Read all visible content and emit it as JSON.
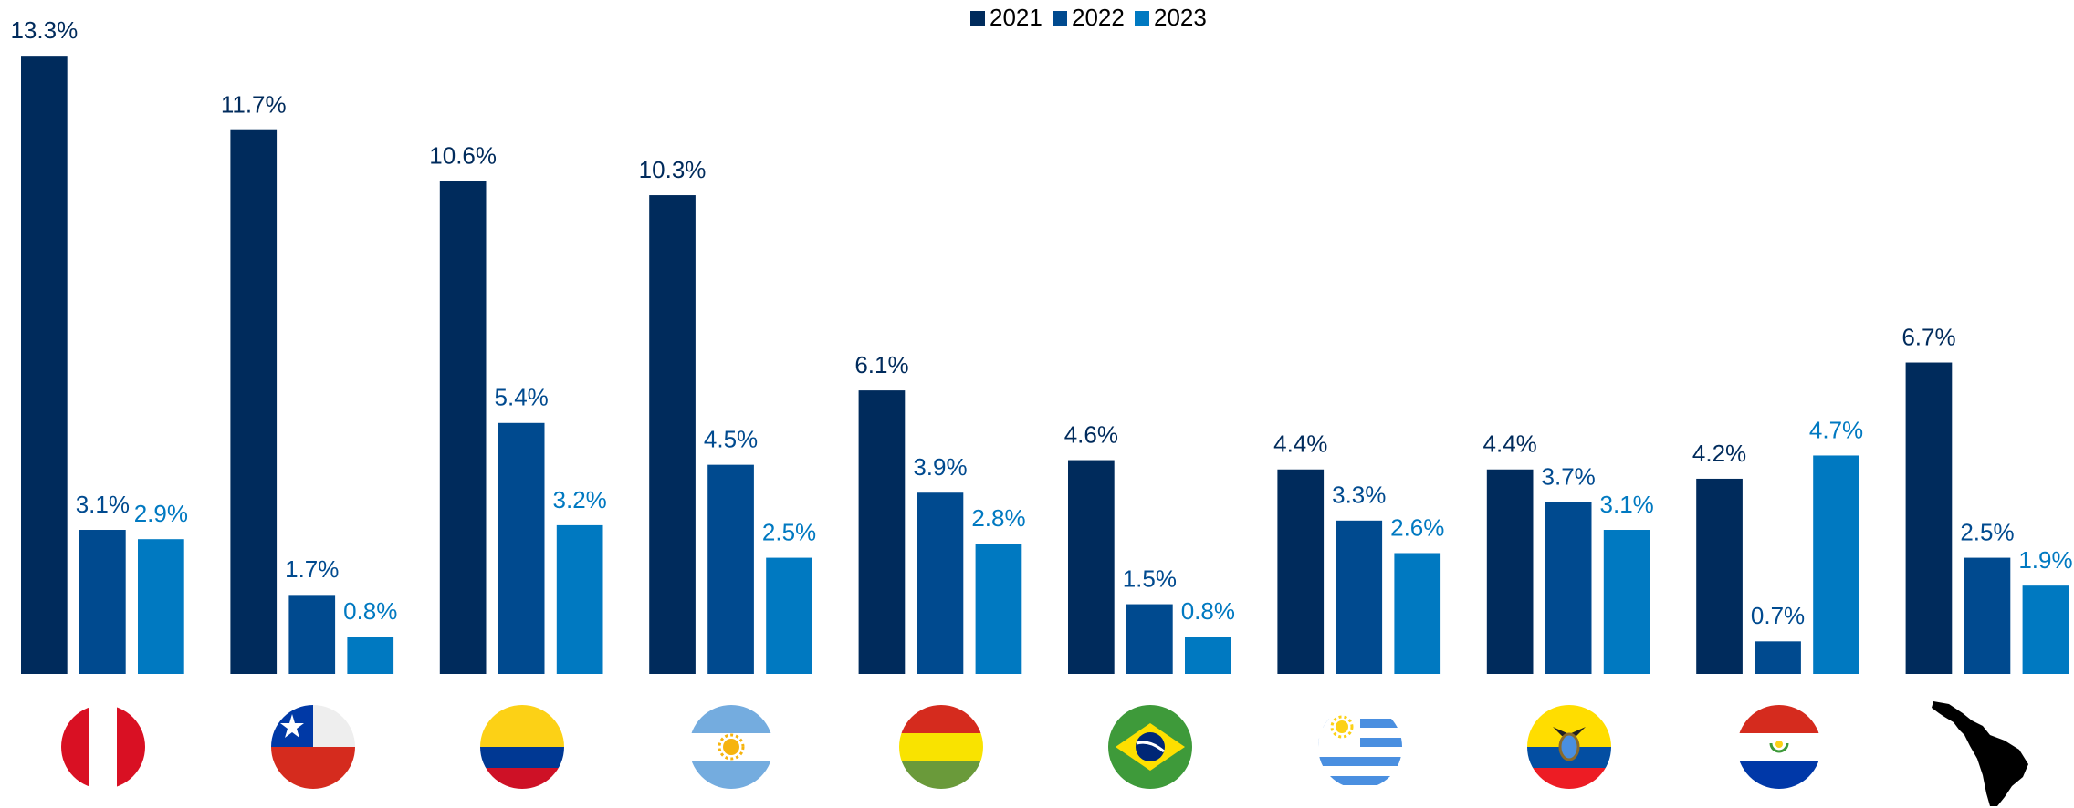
{
  "chart_data": {
    "type": "bar",
    "categories": [
      null,
      null,
      null,
      null,
      null,
      null,
      null,
      null,
      null,
      null
    ],
    "series": [
      {
        "name": "2021",
        "color": "#002b5c",
        "values": [
          13.3,
          11.7,
          10.6,
          10.3,
          6.1,
          4.6,
          4.4,
          4.4,
          4.2,
          6.7
        ],
        "value_labels": [
          "13.3%",
          "11.7%",
          "10.6%",
          "10.3%",
          "6.1%",
          "4.6%",
          "4.4%",
          "4.4%",
          "4.2%",
          "6.7%"
        ]
      },
      {
        "name": "2022",
        "color": "#004a8f",
        "values": [
          3.1,
          1.7,
          5.4,
          4.5,
          3.9,
          1.5,
          3.3,
          3.7,
          0.7,
          2.5
        ],
        "value_labels": [
          "3.1%",
          "1.7%",
          "5.4%",
          "4.5%",
          "3.9%",
          "1.5%",
          "3.3%",
          "3.7%",
          "0.7%",
          "2.5%"
        ]
      },
      {
        "name": "2023",
        "color": "#0079c1",
        "values": [
          2.9,
          0.8,
          3.2,
          2.5,
          2.8,
          0.8,
          2.6,
          3.1,
          4.7,
          1.9
        ],
        "value_labels": [
          "2.9%",
          "0.8%",
          "3.2%",
          "2.5%",
          "2.8%",
          "0.8%",
          "2.6%",
          "3.1%",
          "4.7%",
          "1.9%"
        ]
      }
    ],
    "ylim": [
      0,
      14.5
    ],
    "legend": "top"
  }
}
